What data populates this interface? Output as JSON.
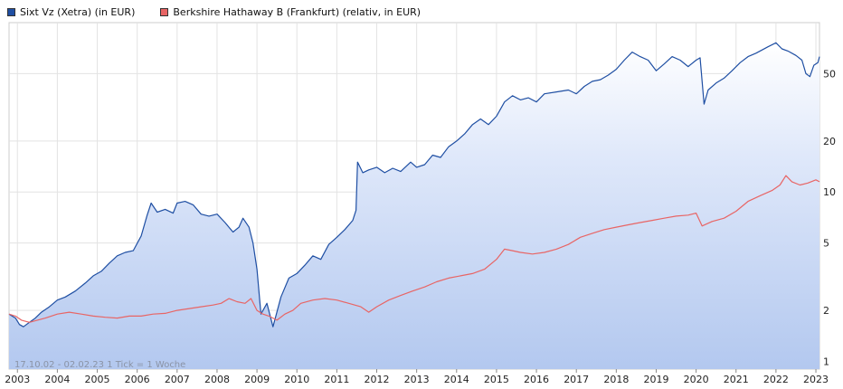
{
  "chart_data": {
    "type": "line",
    "scale": "log",
    "legend_placement": "top-left",
    "grid": true,
    "ylim": [
      0.9,
      100
    ],
    "y_ticks": [
      1,
      2,
      5,
      10,
      20,
      50
    ],
    "y_tick_labels": [
      "1",
      "2",
      "5",
      "10",
      "20",
      "50"
    ],
    "x_ticks": [
      2003,
      2004,
      2005,
      2006,
      2007,
      2008,
      2009,
      2010,
      2011,
      2012,
      2013,
      2014,
      2015,
      2016,
      2017,
      2018,
      2019,
      2020,
      2021,
      2022,
      2023
    ],
    "x_tick_labels": [
      "2003",
      "2004",
      "2005",
      "2006",
      "2007",
      "2008",
      "2009",
      "2010",
      "2011",
      "2012",
      "2013",
      "2014",
      "2015",
      "2016",
      "2017",
      "2018",
      "2019",
      "2020",
      "2021",
      "2022",
      "2023"
    ],
    "xlim": [
      2002.79,
      2023.09
    ],
    "footer_note": "17.10.02 - 02.02.23   1 Tick = 1 Woche",
    "series": [
      {
        "name": "Sixt Vz (Xetra) (in EUR)",
        "color": "#1f4fa3",
        "filled": true,
        "points": [
          [
            2002.79,
            1.9
          ],
          [
            2002.95,
            1.8
          ],
          [
            2003.05,
            1.65
          ],
          [
            2003.15,
            1.6
          ],
          [
            2003.3,
            1.7
          ],
          [
            2003.45,
            1.8
          ],
          [
            2003.6,
            1.95
          ],
          [
            2003.8,
            2.1
          ],
          [
            2004.0,
            2.3
          ],
          [
            2004.2,
            2.4
          ],
          [
            2004.45,
            2.6
          ],
          [
            2004.7,
            2.9
          ],
          [
            2004.9,
            3.2
          ],
          [
            2005.1,
            3.4
          ],
          [
            2005.3,
            3.8
          ],
          [
            2005.5,
            4.2
          ],
          [
            2005.7,
            4.4
          ],
          [
            2005.9,
            4.5
          ],
          [
            2006.1,
            5.5
          ],
          [
            2006.25,
            7.3
          ],
          [
            2006.35,
            8.6
          ],
          [
            2006.5,
            7.6
          ],
          [
            2006.7,
            7.9
          ],
          [
            2006.9,
            7.5
          ],
          [
            2007.0,
            8.6
          ],
          [
            2007.2,
            8.8
          ],
          [
            2007.4,
            8.4
          ],
          [
            2007.6,
            7.4
          ],
          [
            2007.8,
            7.2
          ],
          [
            2008.0,
            7.4
          ],
          [
            2008.2,
            6.6
          ],
          [
            2008.4,
            5.8
          ],
          [
            2008.55,
            6.2
          ],
          [
            2008.65,
            7.0
          ],
          [
            2008.8,
            6.2
          ],
          [
            2008.9,
            5.0
          ],
          [
            2009.0,
            3.5
          ],
          [
            2009.1,
            1.9
          ],
          [
            2009.25,
            2.2
          ],
          [
            2009.4,
            1.6
          ],
          [
            2009.6,
            2.4
          ],
          [
            2009.8,
            3.1
          ],
          [
            2010.0,
            3.3
          ],
          [
            2010.2,
            3.7
          ],
          [
            2010.4,
            4.2
          ],
          [
            2010.6,
            4.0
          ],
          [
            2010.8,
            4.9
          ],
          [
            2011.0,
            5.4
          ],
          [
            2011.2,
            6.0
          ],
          [
            2011.4,
            6.8
          ],
          [
            2011.48,
            7.8
          ],
          [
            2011.52,
            15.0
          ],
          [
            2011.65,
            13.0
          ],
          [
            2011.8,
            13.5
          ],
          [
            2012.0,
            14.0
          ],
          [
            2012.2,
            13.0
          ],
          [
            2012.4,
            13.8
          ],
          [
            2012.6,
            13.2
          ],
          [
            2012.85,
            15.0
          ],
          [
            2013.0,
            14.0
          ],
          [
            2013.2,
            14.5
          ],
          [
            2013.4,
            16.5
          ],
          [
            2013.6,
            16.0
          ],
          [
            2013.8,
            18.5
          ],
          [
            2014.0,
            20.0
          ],
          [
            2014.2,
            22.0
          ],
          [
            2014.4,
            25.0
          ],
          [
            2014.6,
            27.0
          ],
          [
            2014.8,
            25.0
          ],
          [
            2015.0,
            28.0
          ],
          [
            2015.2,
            34.0
          ],
          [
            2015.4,
            37.0
          ],
          [
            2015.6,
            35.0
          ],
          [
            2015.8,
            36.0
          ],
          [
            2016.0,
            34.0
          ],
          [
            2016.2,
            38.0
          ],
          [
            2016.5,
            39.0
          ],
          [
            2016.8,
            40.0
          ],
          [
            2017.0,
            38.0
          ],
          [
            2017.2,
            42.0
          ],
          [
            2017.4,
            45.0
          ],
          [
            2017.6,
            46.0
          ],
          [
            2017.8,
            49.0
          ],
          [
            2018.0,
            53.0
          ],
          [
            2018.2,
            60.0
          ],
          [
            2018.4,
            67.0
          ],
          [
            2018.6,
            63.0
          ],
          [
            2018.8,
            60.0
          ],
          [
            2019.0,
            52.0
          ],
          [
            2019.2,
            57.0
          ],
          [
            2019.4,
            63.0
          ],
          [
            2019.6,
            60.0
          ],
          [
            2019.8,
            55.0
          ],
          [
            2020.0,
            60.0
          ],
          [
            2020.1,
            62.0
          ],
          [
            2020.2,
            33.0
          ],
          [
            2020.3,
            40.0
          ],
          [
            2020.5,
            44.0
          ],
          [
            2020.7,
            47.0
          ],
          [
            2020.9,
            52.0
          ],
          [
            2021.1,
            58.0
          ],
          [
            2021.3,
            63.0
          ],
          [
            2021.5,
            66.0
          ],
          [
            2021.8,
            72.0
          ],
          [
            2022.0,
            76.0
          ],
          [
            2022.15,
            70.0
          ],
          [
            2022.3,
            68.0
          ],
          [
            2022.5,
            64.0
          ],
          [
            2022.65,
            60.0
          ],
          [
            2022.75,
            50.0
          ],
          [
            2022.85,
            48.0
          ],
          [
            2022.95,
            56.0
          ],
          [
            2023.05,
            58.0
          ],
          [
            2023.09,
            63.0
          ]
        ]
      },
      {
        "name": "Berkshire Hathaway B (Frankfurt) (relativ, in EUR)",
        "color": "#e86565",
        "filled": false,
        "points": [
          [
            2002.79,
            1.9
          ],
          [
            2002.95,
            1.85
          ],
          [
            2003.1,
            1.75
          ],
          [
            2003.3,
            1.7
          ],
          [
            2003.5,
            1.75
          ],
          [
            2003.7,
            1.8
          ],
          [
            2004.0,
            1.9
          ],
          [
            2004.3,
            1.95
          ],
          [
            2004.6,
            1.9
          ],
          [
            2004.9,
            1.85
          ],
          [
            2005.2,
            1.82
          ],
          [
            2005.5,
            1.8
          ],
          [
            2005.8,
            1.85
          ],
          [
            2006.1,
            1.85
          ],
          [
            2006.4,
            1.9
          ],
          [
            2006.7,
            1.92
          ],
          [
            2007.0,
            2.0
          ],
          [
            2007.3,
            2.05
          ],
          [
            2007.6,
            2.1
          ],
          [
            2007.9,
            2.15
          ],
          [
            2008.1,
            2.2
          ],
          [
            2008.3,
            2.35
          ],
          [
            2008.5,
            2.25
          ],
          [
            2008.7,
            2.2
          ],
          [
            2008.85,
            2.35
          ],
          [
            2009.0,
            2.0
          ],
          [
            2009.15,
            1.9
          ],
          [
            2009.3,
            1.85
          ],
          [
            2009.5,
            1.75
          ],
          [
            2009.7,
            1.9
          ],
          [
            2009.9,
            2.0
          ],
          [
            2010.1,
            2.2
          ],
          [
            2010.4,
            2.3
          ],
          [
            2010.7,
            2.35
          ],
          [
            2011.0,
            2.3
          ],
          [
            2011.3,
            2.2
          ],
          [
            2011.6,
            2.1
          ],
          [
            2011.8,
            1.95
          ],
          [
            2012.0,
            2.1
          ],
          [
            2012.3,
            2.3
          ],
          [
            2012.6,
            2.45
          ],
          [
            2012.9,
            2.6
          ],
          [
            2013.2,
            2.75
          ],
          [
            2013.5,
            2.95
          ],
          [
            2013.8,
            3.1
          ],
          [
            2014.1,
            3.2
          ],
          [
            2014.4,
            3.3
          ],
          [
            2014.7,
            3.5
          ],
          [
            2015.0,
            4.0
          ],
          [
            2015.2,
            4.6
          ],
          [
            2015.4,
            4.5
          ],
          [
            2015.6,
            4.4
          ],
          [
            2015.9,
            4.3
          ],
          [
            2016.2,
            4.4
          ],
          [
            2016.5,
            4.6
          ],
          [
            2016.8,
            4.9
          ],
          [
            2017.1,
            5.4
          ],
          [
            2017.4,
            5.7
          ],
          [
            2017.7,
            6.0
          ],
          [
            2018.0,
            6.2
          ],
          [
            2018.3,
            6.4
          ],
          [
            2018.6,
            6.6
          ],
          [
            2018.9,
            6.8
          ],
          [
            2019.2,
            7.0
          ],
          [
            2019.5,
            7.2
          ],
          [
            2019.8,
            7.3
          ],
          [
            2020.0,
            7.5
          ],
          [
            2020.15,
            6.3
          ],
          [
            2020.4,
            6.7
          ],
          [
            2020.7,
            7.0
          ],
          [
            2021.0,
            7.7
          ],
          [
            2021.3,
            8.8
          ],
          [
            2021.6,
            9.5
          ],
          [
            2021.9,
            10.2
          ],
          [
            2022.1,
            11.0
          ],
          [
            2022.25,
            12.5
          ],
          [
            2022.4,
            11.5
          ],
          [
            2022.6,
            11.0
          ],
          [
            2022.8,
            11.3
          ],
          [
            2023.0,
            11.8
          ],
          [
            2023.09,
            11.5
          ]
        ]
      }
    ]
  }
}
